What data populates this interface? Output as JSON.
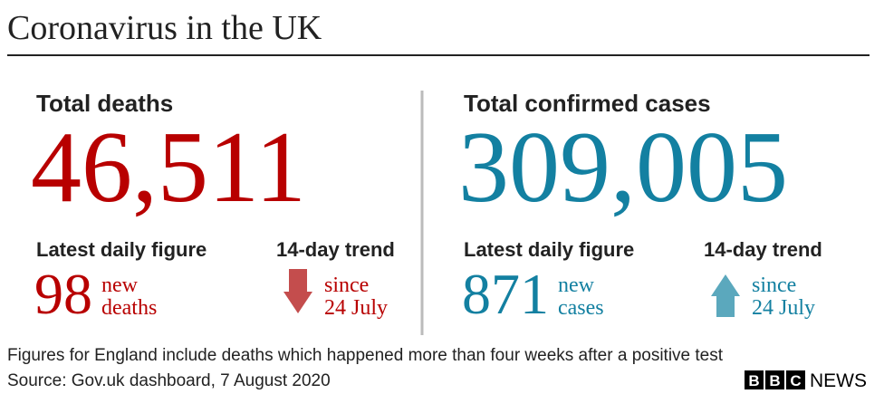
{
  "header": {
    "title": "Coronavirus in the UK"
  },
  "panels": [
    {
      "label": "Total deaths",
      "total": "46,511",
      "color": "#b80000",
      "daily_label": "Latest daily figure",
      "daily_value": "98",
      "daily_unit": [
        "new",
        "deaths"
      ],
      "trend_label": "14-day trend",
      "trend_direction": "down",
      "arrow_color": "#c44d4d",
      "trend_text": [
        "since",
        "24 July"
      ]
    },
    {
      "label": "Total confirmed cases",
      "total": "309,005",
      "color": "#1380a1",
      "daily_label": "Latest daily figure",
      "daily_value": "871",
      "daily_unit": [
        "new",
        "cases"
      ],
      "trend_label": "14-day trend",
      "trend_direction": "up",
      "arrow_color": "#5ba8bd",
      "trend_text": [
        "since",
        "24 July"
      ]
    }
  ],
  "footer": {
    "note": "Figures for England include deaths which happened more than four weeks after a positive test",
    "source": "Source: Gov.uk dashboard, 7 August 2020"
  },
  "logo": {
    "letters": [
      "B",
      "B",
      "C"
    ],
    "word": "NEWS"
  }
}
